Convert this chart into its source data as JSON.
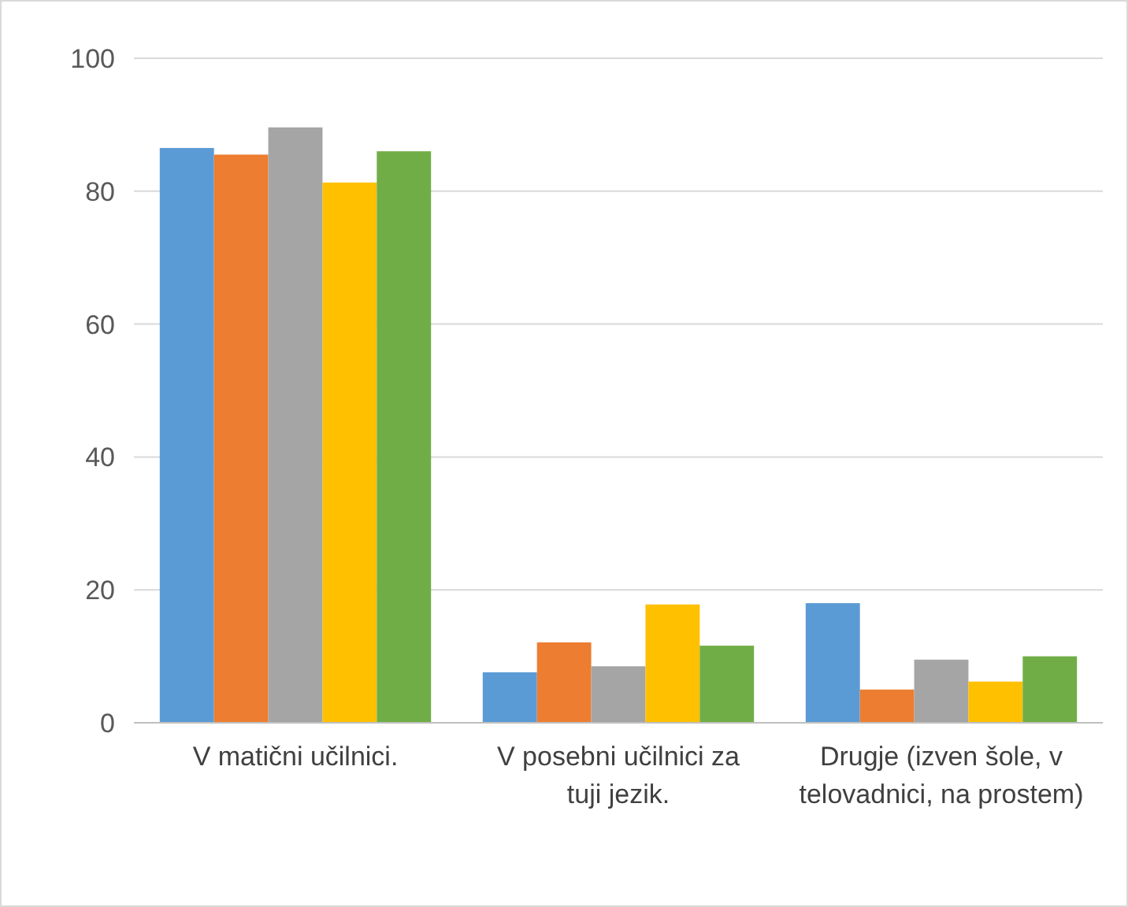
{
  "chart_data": {
    "type": "bar",
    "categories": [
      "V matični učilnici.",
      "V posebni učilnici za tuji jezik.",
      "Drugje (izven šole, v telovadnici, na prostem)"
    ],
    "series": [
      {
        "color": "#5b9bd5",
        "values": [
          86.5,
          7.6,
          18.0
        ]
      },
      {
        "color": "#ed7d31",
        "values": [
          85.5,
          12.1,
          5.0
        ]
      },
      {
        "color": "#a5a5a5",
        "values": [
          89.6,
          8.5,
          9.5
        ]
      },
      {
        "color": "#ffc000",
        "values": [
          81.3,
          17.8,
          6.2
        ]
      },
      {
        "color": "#70ad47",
        "values": [
          86.0,
          11.6,
          10.0
        ]
      }
    ],
    "ylim": [
      0,
      100
    ],
    "yticks": [
      0,
      20,
      40,
      60,
      80,
      100
    ],
    "grid": "y"
  }
}
